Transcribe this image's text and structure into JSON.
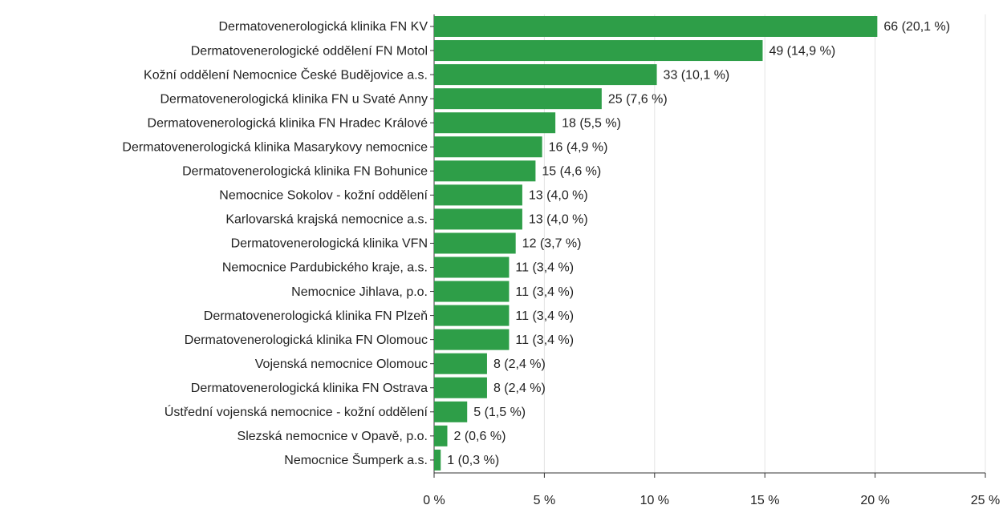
{
  "chart_data": {
    "type": "barh",
    "categories": [
      "Dermatovenerologická klinika FN KV",
      "Dermatovenerologické oddělení FN Motol",
      "Kožní oddělení Nemocnice České Budějovice a.s.",
      "Dermatovenerologická klinika FN u Svaté Anny",
      "Dermatovenerologická klinika FN Hradec Králové",
      "Dermatovenerologická klinika Masarykovy nemocnice",
      "Dermatovenerologická klinika FN Bohunice",
      "Nemocnice Sokolov - kožní oddělení",
      "Karlovarská krajská nemocnice a.s.",
      "Dermatovenerologická klinika VFN",
      "Nemocnice Pardubického kraje, a.s.",
      "Nemocnice Jihlava, p.o.",
      "Dermatovenerologická klinika FN Plzeň",
      "Dermatovenerologická klinika FN Olomouc",
      "Vojenská nemocnice Olomouc",
      "Dermatovenerologická klinika FN Ostrava",
      "Ústřední vojenská nemocnice - kožní oddělení",
      "Slezská nemocnice v Opavě, p.o.",
      "Nemocnice Šumperk a.s."
    ],
    "values": [
      20.1,
      14.9,
      10.1,
      7.6,
      5.5,
      4.9,
      4.6,
      4.0,
      4.0,
      3.7,
      3.4,
      3.4,
      3.4,
      3.4,
      2.4,
      2.4,
      1.5,
      0.6,
      0.3
    ],
    "value_labels": [
      "66 (20,1 %)",
      "49 (14,9 %)",
      "33 (10,1 %)",
      "25 (7,6 %)",
      "18 (5,5 %)",
      "16 (4,9 %)",
      "15 (4,6 %)",
      "13 (4,0 %)",
      "13 (4,0 %)",
      "12 (3,7 %)",
      "11 (3,4 %)",
      "11 (3,4 %)",
      "11 (3,4 %)",
      "11 (3,4 %)",
      "8 (2,4 %)",
      "8 (2,4 %)",
      "5 (1,5 %)",
      "2 (0,6 %)",
      "1 (0,3 %)"
    ],
    "color": "#2e9e48",
    "xlim": [
      0,
      25
    ],
    "xticks": [
      {
        "value": 0,
        "label": "0 %"
      },
      {
        "value": 5,
        "label": "5 %"
      },
      {
        "value": 10,
        "label": "10 %"
      },
      {
        "value": 15,
        "label": "15 %"
      },
      {
        "value": 20,
        "label": "20 %"
      },
      {
        "value": 25,
        "label": "25 %"
      }
    ],
    "grid": true
  }
}
